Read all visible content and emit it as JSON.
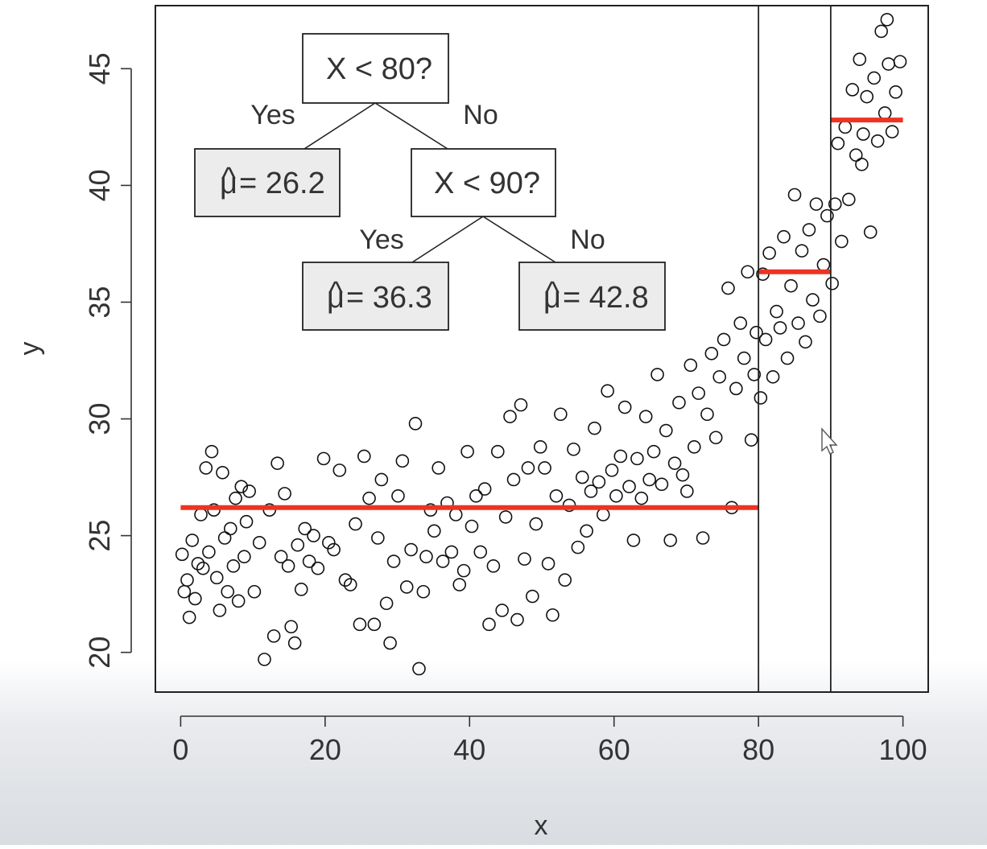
{
  "chart_data": {
    "type": "scatter",
    "xlabel": "x",
    "ylabel": "y",
    "xlim": [
      -3.5,
      103.5
    ],
    "ylim": [
      18.3,
      47.7
    ],
    "x_ticks": [
      "0",
      "20",
      "40",
      "60",
      "80",
      "100"
    ],
    "x_tick_values": [
      0,
      20,
      40,
      60,
      80,
      100
    ],
    "y_ticks": [
      "20",
      "25",
      "30",
      "35",
      "40",
      "45"
    ],
    "y_tick_values": [
      20,
      25,
      30,
      35,
      40,
      45
    ],
    "grid": false,
    "split_lines": [
      80,
      90
    ],
    "segments": [
      {
        "x0": 0,
        "x1": 80,
        "y": 26.2,
        "color": "#ee3322"
      },
      {
        "x0": 80,
        "x1": 90,
        "y": 36.3,
        "color": "#ee3322"
      },
      {
        "x0": 90,
        "x1": 100,
        "y": 42.8,
        "color": "#ee3322"
      }
    ],
    "points": [
      [
        0.2,
        24.2
      ],
      [
        0.5,
        22.6
      ],
      [
        0.9,
        23.1
      ],
      [
        1.2,
        21.5
      ],
      [
        1.6,
        24.8
      ],
      [
        2.0,
        22.3
      ],
      [
        2.4,
        23.8
      ],
      [
        2.8,
        25.9
      ],
      [
        3.1,
        23.6
      ],
      [
        3.5,
        27.9
      ],
      [
        3.9,
        24.3
      ],
      [
        4.3,
        28.6
      ],
      [
        4.6,
        26.1
      ],
      [
        5.0,
        23.2
      ],
      [
        5.4,
        21.8
      ],
      [
        5.8,
        27.7
      ],
      [
        6.1,
        24.9
      ],
      [
        6.5,
        22.6
      ],
      [
        6.9,
        25.3
      ],
      [
        7.3,
        23.7
      ],
      [
        7.6,
        26.6
      ],
      [
        8.0,
        22.2
      ],
      [
        8.4,
        27.1
      ],
      [
        8.8,
        24.1
      ],
      [
        9.1,
        25.6
      ],
      [
        9.5,
        26.9
      ],
      [
        10.2,
        22.6
      ],
      [
        10.9,
        24.7
      ],
      [
        11.6,
        19.7
      ],
      [
        12.3,
        26.1
      ],
      [
        12.9,
        20.7
      ],
      [
        13.4,
        28.1
      ],
      [
        13.9,
        24.1
      ],
      [
        14.4,
        26.8
      ],
      [
        14.9,
        23.7
      ],
      [
        15.3,
        21.1
      ],
      [
        15.8,
        20.4
      ],
      [
        16.2,
        24.6
      ],
      [
        16.7,
        22.7
      ],
      [
        17.2,
        25.3
      ],
      [
        17.8,
        23.9
      ],
      [
        18.4,
        25.0
      ],
      [
        19.0,
        23.6
      ],
      [
        19.8,
        28.3
      ],
      [
        20.5,
        24.7
      ],
      [
        21.2,
        24.4
      ],
      [
        22.0,
        27.8
      ],
      [
        22.8,
        23.1
      ],
      [
        23.5,
        22.9
      ],
      [
        24.2,
        25.5
      ],
      [
        24.8,
        21.2
      ],
      [
        25.4,
        28.4
      ],
      [
        26.1,
        26.6
      ],
      [
        26.8,
        21.2
      ],
      [
        27.3,
        24.9
      ],
      [
        27.8,
        27.4
      ],
      [
        28.5,
        22.1
      ],
      [
        29.0,
        20.4
      ],
      [
        29.5,
        23.9
      ],
      [
        30.1,
        26.7
      ],
      [
        30.7,
        28.2
      ],
      [
        31.3,
        22.8
      ],
      [
        31.9,
        24.4
      ],
      [
        32.5,
        29.8
      ],
      [
        33.0,
        19.3
      ],
      [
        33.6,
        22.6
      ],
      [
        34.0,
        24.1
      ],
      [
        34.6,
        26.1
      ],
      [
        35.1,
        25.2
      ],
      [
        35.7,
        27.9
      ],
      [
        36.3,
        23.9
      ],
      [
        36.9,
        26.4
      ],
      [
        37.5,
        24.3
      ],
      [
        38.1,
        25.9
      ],
      [
        38.6,
        22.9
      ],
      [
        39.2,
        23.5
      ],
      [
        39.7,
        28.6
      ],
      [
        40.3,
        25.4
      ],
      [
        40.9,
        26.7
      ],
      [
        41.5,
        24.3
      ],
      [
        42.1,
        27.0
      ],
      [
        42.7,
        21.2
      ],
      [
        43.3,
        23.7
      ],
      [
        43.9,
        28.6
      ],
      [
        44.5,
        21.8
      ],
      [
        45.0,
        25.8
      ],
      [
        45.6,
        30.1
      ],
      [
        46.1,
        27.4
      ],
      [
        46.6,
        21.4
      ],
      [
        47.1,
        30.6
      ],
      [
        47.6,
        24.0
      ],
      [
        48.1,
        27.9
      ],
      [
        48.7,
        22.4
      ],
      [
        49.2,
        25.5
      ],
      [
        49.8,
        28.8
      ],
      [
        50.4,
        27.9
      ],
      [
        50.9,
        23.8
      ],
      [
        51.5,
        21.6
      ],
      [
        52.0,
        26.7
      ],
      [
        52.6,
        30.2
      ],
      [
        53.2,
        23.1
      ],
      [
        53.8,
        26.3
      ],
      [
        54.4,
        28.7
      ],
      [
        55.0,
        24.5
      ],
      [
        55.6,
        27.5
      ],
      [
        56.2,
        25.2
      ],
      [
        56.8,
        26.9
      ],
      [
        57.3,
        29.6
      ],
      [
        57.9,
        27.3
      ],
      [
        58.5,
        25.9
      ],
      [
        59.1,
        31.2
      ],
      [
        59.7,
        27.8
      ],
      [
        60.3,
        26.7
      ],
      [
        60.9,
        28.4
      ],
      [
        61.5,
        30.5
      ],
      [
        62.1,
        27.1
      ],
      [
        62.7,
        24.8
      ],
      [
        63.2,
        28.3
      ],
      [
        63.8,
        26.6
      ],
      [
        64.4,
        30.1
      ],
      [
        64.9,
        27.4
      ],
      [
        65.5,
        28.6
      ],
      [
        66.0,
        31.9
      ],
      [
        66.6,
        27.2
      ],
      [
        67.2,
        29.5
      ],
      [
        67.8,
        24.8
      ],
      [
        68.4,
        28.1
      ],
      [
        69.0,
        30.7
      ],
      [
        69.5,
        27.6
      ],
      [
        70.1,
        26.9
      ],
      [
        70.6,
        32.3
      ],
      [
        71.1,
        28.8
      ],
      [
        71.7,
        31.1
      ],
      [
        72.3,
        24.9
      ],
      [
        72.9,
        30.2
      ],
      [
        73.5,
        32.8
      ],
      [
        74.1,
        29.2
      ],
      [
        74.6,
        31.8
      ],
      [
        75.2,
        33.4
      ],
      [
        75.8,
        35.6
      ],
      [
        76.3,
        26.2
      ],
      [
        76.9,
        31.3
      ],
      [
        77.5,
        34.1
      ],
      [
        78.0,
        32.6
      ],
      [
        78.5,
        36.3
      ],
      [
        79.0,
        29.1
      ],
      [
        79.4,
        31.9
      ],
      [
        79.7,
        33.7
      ],
      [
        80.3,
        30.9
      ],
      [
        80.6,
        36.2
      ],
      [
        81.0,
        33.4
      ],
      [
        81.5,
        37.1
      ],
      [
        82.0,
        31.8
      ],
      [
        82.5,
        34.6
      ],
      [
        83.0,
        33.9
      ],
      [
        83.5,
        37.8
      ],
      [
        84.0,
        32.6
      ],
      [
        84.5,
        35.7
      ],
      [
        85.0,
        39.6
      ],
      [
        85.5,
        34.1
      ],
      [
        86.0,
        37.2
      ],
      [
        86.5,
        33.3
      ],
      [
        87.0,
        38.1
      ],
      [
        87.5,
        35.1
      ],
      [
        88.0,
        39.2
      ],
      [
        88.5,
        34.4
      ],
      [
        89.0,
        36.6
      ],
      [
        89.5,
        38.7
      ],
      [
        90.2,
        35.8
      ],
      [
        90.6,
        39.2
      ],
      [
        91.0,
        41.8
      ],
      [
        91.5,
        37.6
      ],
      [
        92.0,
        42.5
      ],
      [
        92.5,
        39.4
      ],
      [
        93.0,
        44.1
      ],
      [
        93.5,
        41.3
      ],
      [
        94.0,
        45.4
      ],
      [
        94.5,
        42.2
      ],
      [
        95.0,
        43.8
      ],
      [
        95.5,
        38.0
      ],
      [
        96.0,
        44.6
      ],
      [
        96.5,
        41.9
      ],
      [
        97.0,
        46.6
      ],
      [
        97.5,
        43.1
      ],
      [
        98.0,
        45.2
      ],
      [
        98.5,
        42.3
      ],
      [
        99.0,
        44.0
      ],
      [
        99.6,
        45.3
      ],
      [
        94.3,
        40.9
      ],
      [
        97.8,
        47.1
      ]
    ]
  },
  "tree": {
    "root": "X < 80?",
    "root_yes": "Yes",
    "root_no": "No",
    "left_leaf_hat": "^",
    "left_leaf_mu": "μ",
    "left_leaf_value": "= 26.2",
    "inner": "X < 90?",
    "inner_yes": "Yes",
    "inner_no": "No",
    "mid_leaf_hat": "^",
    "mid_leaf_mu": "μ",
    "mid_leaf_value": "= 36.3",
    "right_leaf_hat": "^",
    "right_leaf_mu": "μ",
    "right_leaf_value": "= 42.8"
  }
}
